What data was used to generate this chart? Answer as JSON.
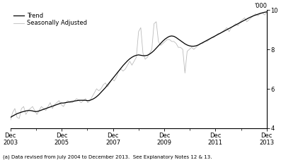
{
  "ylabel_right": "'000",
  "footnote": "(a) Data revised from July 2004 to December 2013.  See Explanatory Notes 12 & 13.",
  "legend_entries": [
    "Trend",
    "Seasonally Adjusted"
  ],
  "trend_color": "#000000",
  "seasonal_color": "#bbbbbb",
  "ylim": [
    4,
    10
  ],
  "yticks": [
    4,
    6,
    8,
    10
  ],
  "background_color": "#ffffff",
  "trend_data": [
    4.55,
    4.62,
    4.68,
    4.74,
    4.78,
    4.82,
    4.85,
    4.88,
    4.9,
    4.9,
    4.88,
    4.85,
    4.85,
    4.88,
    4.92,
    4.96,
    5.0,
    5.04,
    5.08,
    5.12,
    5.16,
    5.2,
    5.24,
    5.28,
    5.28,
    5.3,
    5.32,
    5.34,
    5.36,
    5.38,
    5.4,
    5.42,
    5.42,
    5.42,
    5.42,
    5.4,
    5.42,
    5.46,
    5.52,
    5.6,
    5.7,
    5.82,
    5.94,
    6.06,
    6.2,
    6.34,
    6.48,
    6.62,
    6.76,
    6.9,
    7.04,
    7.18,
    7.3,
    7.42,
    7.52,
    7.6,
    7.66,
    7.7,
    7.72,
    7.7,
    7.68,
    7.68,
    7.7,
    7.76,
    7.84,
    7.94,
    8.06,
    8.18,
    8.3,
    8.42,
    8.52,
    8.6,
    8.66,
    8.68,
    8.66,
    8.6,
    8.52,
    8.44,
    8.36,
    8.28,
    8.22,
    8.18,
    8.16,
    8.16,
    8.18,
    8.22,
    8.28,
    8.34,
    8.4,
    8.46,
    8.52,
    8.58,
    8.64,
    8.7,
    8.76,
    8.82,
    8.88,
    8.94,
    9.0,
    9.06,
    9.12,
    9.18,
    9.24,
    9.3,
    9.36,
    9.42,
    9.48,
    9.54,
    9.6,
    9.65,
    9.7,
    9.74,
    9.78,
    9.82,
    9.85,
    9.88,
    9.9
  ],
  "seasonal_data": [
    4.4,
    4.8,
    5.0,
    4.55,
    4.5,
    5.0,
    5.1,
    4.7,
    4.9,
    5.0,
    5.1,
    4.9,
    4.7,
    4.9,
    5.1,
    5.0,
    4.9,
    5.1,
    5.3,
    5.0,
    5.2,
    5.3,
    5.4,
    5.2,
    5.1,
    5.3,
    5.4,
    5.3,
    5.3,
    5.4,
    5.5,
    5.4,
    5.3,
    5.4,
    5.5,
    5.3,
    5.4,
    5.6,
    5.8,
    6.0,
    5.9,
    6.0,
    6.2,
    6.3,
    6.1,
    6.3,
    6.5,
    6.4,
    6.6,
    6.9,
    7.0,
    6.9,
    7.0,
    7.2,
    7.4,
    7.2,
    7.4,
    7.6,
    8.9,
    9.1,
    7.8,
    7.5,
    7.6,
    7.8,
    8.0,
    9.3,
    9.4,
    8.4,
    8.2,
    8.3,
    8.4,
    8.5,
    8.5,
    8.4,
    8.4,
    8.3,
    8.1,
    8.1,
    8.0,
    6.8,
    7.9,
    8.0,
    8.1,
    8.0,
    8.1,
    8.2,
    8.3,
    8.3,
    8.4,
    8.4,
    8.5,
    8.6,
    8.6,
    8.7,
    8.8,
    8.8,
    8.9,
    9.0,
    9.1,
    8.9,
    9.1,
    9.2,
    9.3,
    9.2,
    9.4,
    9.5,
    9.6,
    9.4,
    9.5,
    9.6,
    9.7,
    9.8,
    9.7,
    9.8,
    9.85,
    9.75,
    9.85
  ]
}
